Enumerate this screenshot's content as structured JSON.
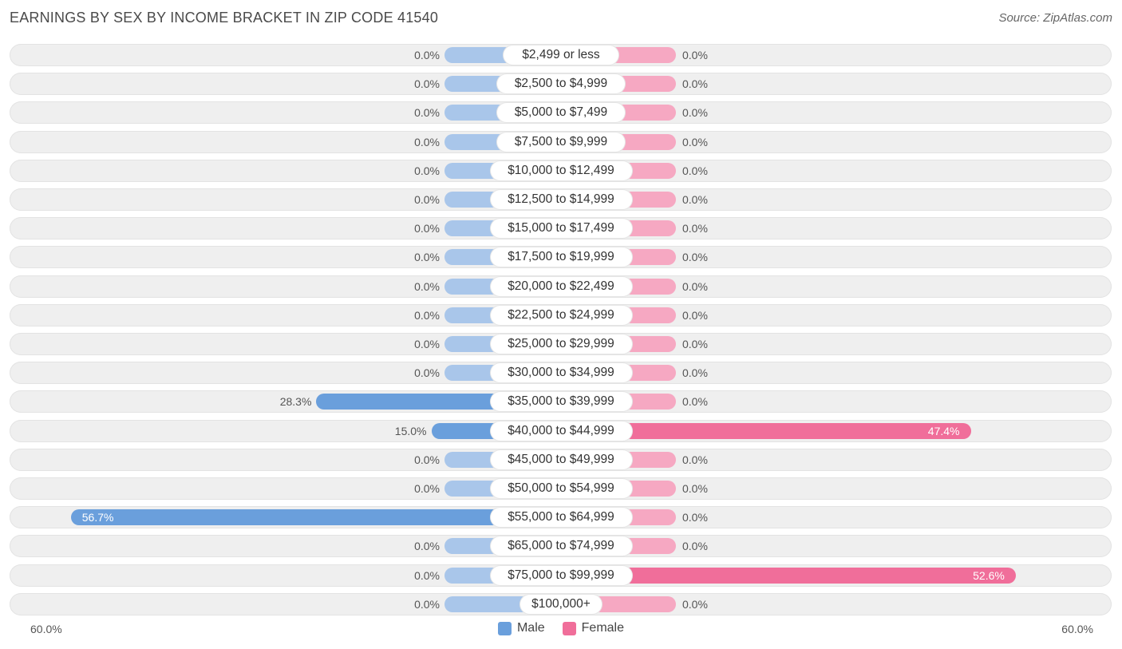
{
  "header": {
    "title": "EARNINGS BY SEX BY INCOME BRACKET IN ZIP CODE 41540",
    "source": "Source: ZipAtlas.com"
  },
  "colors": {
    "male_light": "#a9c6ea",
    "male_strong": "#6a9fdc",
    "female_light": "#f6a8c2",
    "female_strong": "#f06e9a"
  },
  "chart_data": {
    "type": "bar",
    "orientation": "horizontal-diverging",
    "title": "EARNINGS BY SEX BY INCOME BRACKET IN ZIP CODE 41540",
    "categories": [
      "$2,499 or less",
      "$2,500 to $4,999",
      "$5,000 to $7,499",
      "$7,500 to $9,999",
      "$10,000 to $12,499",
      "$12,500 to $14,999",
      "$15,000 to $17,499",
      "$17,500 to $19,999",
      "$20,000 to $22,499",
      "$22,500 to $24,999",
      "$25,000 to $29,999",
      "$30,000 to $34,999",
      "$35,000 to $39,999",
      "$40,000 to $44,999",
      "$45,000 to $49,999",
      "$50,000 to $54,999",
      "$55,000 to $64,999",
      "$65,000 to $74,999",
      "$75,000 to $99,999",
      "$100,000+"
    ],
    "series": [
      {
        "name": "Male",
        "values": [
          0,
          0,
          0,
          0,
          0,
          0,
          0,
          0,
          0,
          0,
          0,
          0,
          28.3,
          15.0,
          0,
          0,
          56.7,
          0,
          0,
          0
        ],
        "labels": [
          "0.0%",
          "0.0%",
          "0.0%",
          "0.0%",
          "0.0%",
          "0.0%",
          "0.0%",
          "0.0%",
          "0.0%",
          "0.0%",
          "0.0%",
          "0.0%",
          "28.3%",
          "15.0%",
          "0.0%",
          "0.0%",
          "56.7%",
          "0.0%",
          "0.0%",
          "0.0%"
        ]
      },
      {
        "name": "Female",
        "values": [
          0,
          0,
          0,
          0,
          0,
          0,
          0,
          0,
          0,
          0,
          0,
          0,
          0,
          47.4,
          0,
          0,
          0,
          0,
          52.6,
          0
        ],
        "labels": [
          "0.0%",
          "0.0%",
          "0.0%",
          "0.0%",
          "0.0%",
          "0.0%",
          "0.0%",
          "0.0%",
          "0.0%",
          "0.0%",
          "0.0%",
          "0.0%",
          "0.0%",
          "47.4%",
          "0.0%",
          "0.0%",
          "0.0%",
          "0.0%",
          "52.6%",
          "0.0%"
        ]
      }
    ],
    "xlim": [
      -60,
      60
    ],
    "axis_left_label": "60.0%",
    "axis_right_label": "60.0%",
    "legend": [
      "Male",
      "Female"
    ],
    "legend_position": "bottom-center"
  }
}
